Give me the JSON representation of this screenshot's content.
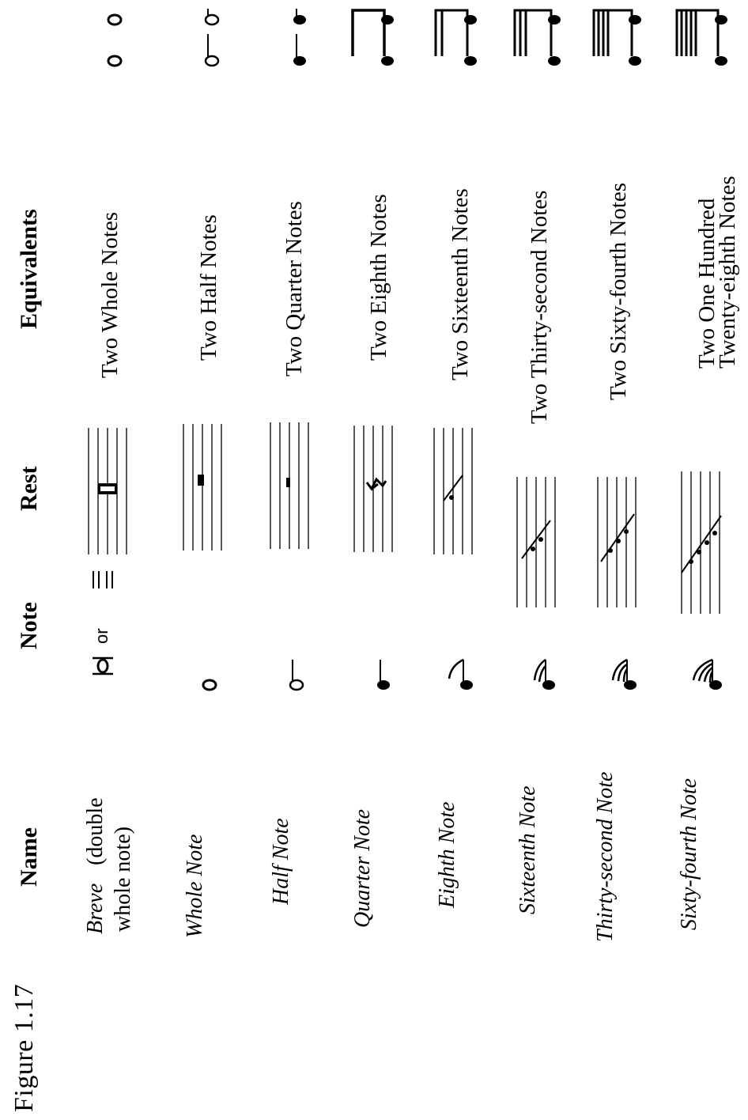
{
  "figure_label": "Figure 1.17",
  "headers": {
    "name": "Name",
    "note": "Note",
    "rest": "Rest",
    "equivalents": "Equivalents"
  },
  "rows": [
    {
      "name": "Breve",
      "name_extra": "(double",
      "name_line2": "whole note)",
      "note_or": "or",
      "equivalent": "Two Whole Notes"
    },
    {
      "name": "Whole Note",
      "equivalent": "Two Half Notes"
    },
    {
      "name": "Half Note",
      "equivalent": "Two Quarter Notes"
    },
    {
      "name": "Quarter Note",
      "equivalent": "Two Eighth Notes"
    },
    {
      "name": "Eighth Note",
      "equivalent": "Two Sixteenth Notes"
    },
    {
      "name": "Sixteenth Note",
      "equivalent": "Two Thirty-second Notes"
    },
    {
      "name": "Thirty-second Note",
      "equivalent": "Two Sixty-fourth Notes"
    },
    {
      "name": "Sixty-fourth Note",
      "equivalent": "Two One Hundred",
      "equivalent_line2": "Twenty-eighth Notes"
    }
  ]
}
